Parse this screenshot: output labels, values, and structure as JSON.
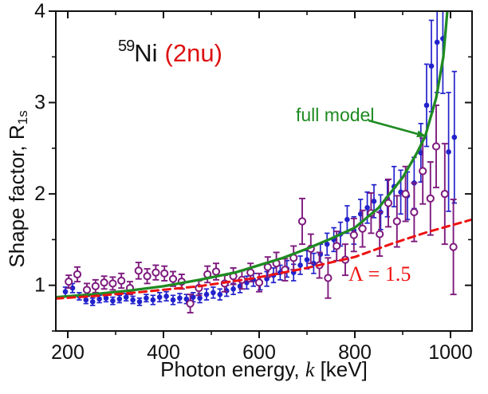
{
  "chart_data": {
    "type": "scatter",
    "isotope": {
      "mass": "59",
      "symbol": "Ni",
      "mode": "(2nu)"
    },
    "annotations": {
      "full_model": "full model",
      "lambda": "Λ = 1.5"
    },
    "xlabel": {
      "prefix": "Photon energy, ",
      "italic": "k",
      "suffix": " [keV]"
    },
    "ylabel": {
      "prefix": "Shape factor, R",
      "subscript": "1s"
    },
    "x_range": [
      175,
      1045
    ],
    "y_range": [
      0.5,
      4.0
    ],
    "x_major_ticks": [
      200,
      400,
      600,
      800,
      1000
    ],
    "x_minor_ticks": [
      300,
      500,
      700,
      900
    ],
    "y_major_ticks": [
      1,
      2,
      3,
      4
    ],
    "y_minor_ticks": [
      0.5,
      1.5,
      2.5,
      3.5
    ],
    "grid": false,
    "colors": {
      "blue_series": "#2222cc",
      "purple_series": "#7d1a7d",
      "full_model": "#1f8b22",
      "lambda_line": "#ee1111",
      "frame": "#111111",
      "isotope_mode": "#dd1111"
    },
    "series": [
      {
        "name": "blue-filled-circles",
        "marker": "filled-circle",
        "color": "#2222cc",
        "points": [
          [
            195,
            0.93,
            0.05
          ],
          [
            210,
            0.97,
            0.05
          ],
          [
            224,
            0.88,
            0.04
          ],
          [
            238,
            0.84,
            0.04
          ],
          [
            252,
            0.82,
            0.04
          ],
          [
            266,
            0.85,
            0.04
          ],
          [
            280,
            0.86,
            0.04
          ],
          [
            294,
            0.83,
            0.04
          ],
          [
            308,
            0.85,
            0.04
          ],
          [
            322,
            0.87,
            0.04
          ],
          [
            336,
            0.84,
            0.04
          ],
          [
            350,
            0.82,
            0.04
          ],
          [
            364,
            0.86,
            0.04
          ],
          [
            378,
            0.84,
            0.05
          ],
          [
            392,
            0.87,
            0.05
          ],
          [
            406,
            0.88,
            0.05
          ],
          [
            420,
            0.84,
            0.05
          ],
          [
            434,
            0.86,
            0.05
          ],
          [
            448,
            0.85,
            0.05
          ],
          [
            462,
            0.87,
            0.05
          ],
          [
            476,
            0.86,
            0.05
          ],
          [
            490,
            0.9,
            0.06
          ],
          [
            504,
            0.92,
            0.06
          ],
          [
            518,
            0.9,
            0.06
          ],
          [
            532,
            0.94,
            0.06
          ],
          [
            546,
            0.96,
            0.06
          ],
          [
            560,
            0.99,
            0.07
          ],
          [
            574,
            1.03,
            0.07
          ],
          [
            588,
            1.06,
            0.07
          ],
          [
            602,
            1.02,
            0.07
          ],
          [
            616,
            1.07,
            0.08
          ],
          [
            630,
            1.11,
            0.08
          ],
          [
            644,
            1.14,
            0.08
          ],
          [
            658,
            1.18,
            0.09
          ],
          [
            672,
            1.14,
            0.09
          ],
          [
            686,
            1.22,
            0.1
          ],
          [
            700,
            1.28,
            0.1
          ],
          [
            714,
            1.24,
            0.11
          ],
          [
            728,
            1.34,
            0.11
          ],
          [
            742,
            1.45,
            0.12
          ],
          [
            756,
            1.5,
            0.13
          ],
          [
            770,
            1.56,
            0.13
          ],
          [
            784,
            1.72,
            0.15
          ],
          [
            798,
            1.6,
            0.15
          ],
          [
            812,
            1.78,
            0.16
          ],
          [
            826,
            1.85,
            0.17
          ],
          [
            840,
            1.92,
            0.18
          ],
          [
            854,
            1.8,
            0.19
          ],
          [
            868,
            1.95,
            0.2
          ],
          [
            882,
            2.08,
            0.22
          ],
          [
            896,
            2.02,
            0.24
          ],
          [
            910,
            1.98,
            0.26
          ],
          [
            924,
            2.12,
            0.28
          ],
          [
            938,
            2.45,
            0.32
          ],
          [
            950,
            2.97,
            0.45
          ],
          [
            960,
            3.4,
            0.5
          ],
          [
            972,
            3.66,
            0.55
          ],
          [
            984,
            3.7,
            0.6
          ],
          [
            996,
            2.46,
            0.65
          ],
          [
            1008,
            2.62,
            0.72
          ]
        ]
      },
      {
        "name": "purple-open-circles",
        "marker": "open-circle",
        "color": "#7d1a7d",
        "points": [
          [
            202,
            1.04,
            0.07
          ],
          [
            220,
            1.12,
            0.08
          ],
          [
            240,
            0.95,
            0.07
          ],
          [
            258,
            0.99,
            0.07
          ],
          [
            276,
            1.03,
            0.07
          ],
          [
            294,
            1.02,
            0.07
          ],
          [
            312,
            1.05,
            0.08
          ],
          [
            330,
            0.97,
            0.07
          ],
          [
            348,
            1.16,
            0.09
          ],
          [
            366,
            1.1,
            0.08
          ],
          [
            384,
            1.14,
            0.08
          ],
          [
            402,
            1.13,
            0.08
          ],
          [
            420,
            1.07,
            0.08
          ],
          [
            438,
            1.04,
            0.08
          ],
          [
            456,
            0.8,
            0.1
          ],
          [
            474,
            0.97,
            0.08
          ],
          [
            492,
            1.12,
            0.09
          ],
          [
            510,
            1.15,
            0.09
          ],
          [
            528,
            1.02,
            0.09
          ],
          [
            546,
            1.1,
            0.09
          ],
          [
            564,
            1.06,
            0.1
          ],
          [
            582,
            1.14,
            0.1
          ],
          [
            600,
            1.03,
            0.1
          ],
          [
            618,
            1.2,
            0.11
          ],
          [
            636,
            1.24,
            0.12
          ],
          [
            654,
            1.17,
            0.12
          ],
          [
            672,
            1.3,
            0.13
          ],
          [
            690,
            1.7,
            0.25
          ],
          [
            708,
            1.4,
            0.16
          ],
          [
            726,
            1.22,
            0.14
          ],
          [
            744,
            1.08,
            0.22
          ],
          [
            762,
            1.43,
            0.16
          ],
          [
            780,
            1.28,
            0.17
          ],
          [
            798,
            1.55,
            0.18
          ],
          [
            816,
            1.62,
            0.2
          ],
          [
            834,
            1.79,
            0.22
          ],
          [
            852,
            1.56,
            0.24
          ],
          [
            870,
            1.9,
            0.26
          ],
          [
            888,
            1.7,
            0.28
          ],
          [
            906,
            2.0,
            0.3
          ],
          [
            924,
            1.8,
            0.32
          ],
          [
            942,
            2.25,
            0.36
          ],
          [
            958,
            1.95,
            0.4
          ],
          [
            970,
            2.52,
            0.45
          ],
          [
            988,
            2.0,
            0.55
          ],
          [
            1006,
            1.42,
            0.52
          ]
        ]
      }
    ],
    "curves": [
      {
        "name": "full-model",
        "style": "solid",
        "color": "#1f8b22",
        "points": [
          [
            175,
            0.87
          ],
          [
            250,
            0.9
          ],
          [
            325,
            0.94
          ],
          [
            400,
            0.99
          ],
          [
            475,
            1.06
          ],
          [
            550,
            1.14
          ],
          [
            600,
            1.22
          ],
          [
            650,
            1.3
          ],
          [
            700,
            1.4
          ],
          [
            750,
            1.51
          ],
          [
            800,
            1.63
          ],
          [
            850,
            1.85
          ],
          [
            900,
            2.18
          ],
          [
            930,
            2.45
          ],
          [
            947,
            2.63
          ],
          [
            970,
            3.05
          ],
          [
            985,
            3.5
          ],
          [
            995,
            4.1
          ]
        ]
      },
      {
        "name": "lambda-1.5",
        "style": "dashed",
        "color": "#ee1111",
        "points": [
          [
            175,
            0.855
          ],
          [
            250,
            0.88
          ],
          [
            350,
            0.925
          ],
          [
            475,
            0.99
          ],
          [
            592,
            1.08
          ],
          [
            700,
            1.19
          ],
          [
            800,
            1.31
          ],
          [
            880,
            1.46
          ],
          [
            950,
            1.58
          ],
          [
            1045,
            1.72
          ]
        ]
      }
    ],
    "arrow": {
      "from": [
        462,
        151
      ],
      "to": [
        535,
        171
      ]
    }
  }
}
